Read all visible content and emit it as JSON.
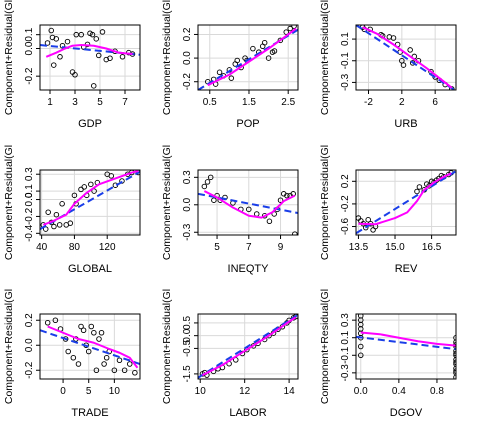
{
  "chart_data": [
    {
      "type": "scatter",
      "xlabel": "GDP",
      "ylabel": "Component+Residual(Gl",
      "xlim": [
        0.2,
        8.2
      ],
      "ylim": [
        -0.3,
        0.17
      ],
      "xticks": [
        1,
        3,
        5,
        7
      ],
      "yticks": [
        -0.2,
        0.0,
        0.1
      ],
      "points": [
        [
          0.8,
          0.04
        ],
        [
          1.1,
          0.13
        ],
        [
          1.2,
          0.08
        ],
        [
          1.3,
          -0.12
        ],
        [
          1.5,
          0.07
        ],
        [
          1.8,
          -0.06
        ],
        [
          2.0,
          0.02
        ],
        [
          2.4,
          0.05
        ],
        [
          2.8,
          -0.17
        ],
        [
          3.0,
          -0.19
        ],
        [
          3.1,
          0.1
        ],
        [
          3.5,
          0.1
        ],
        [
          3.7,
          0.01
        ],
        [
          4.0,
          0.03
        ],
        [
          4.2,
          0.11
        ],
        [
          4.4,
          0.1
        ],
        [
          4.5,
          -0.27
        ],
        [
          4.7,
          0.07
        ],
        [
          4.9,
          -0.05
        ],
        [
          5.2,
          0.12
        ],
        [
          5.5,
          -0.08
        ],
        [
          5.8,
          -0.07
        ],
        [
          6.2,
          -0.02
        ],
        [
          6.8,
          -0.06
        ],
        [
          7.3,
          -0.03
        ],
        [
          7.6,
          -0.04
        ]
      ],
      "linear_fit": [
        [
          0.2,
          0.025
        ],
        [
          8.2,
          -0.045
        ]
      ],
      "smooth_fit": [
        [
          0.7,
          -0.06
        ],
        [
          1.5,
          -0.03
        ],
        [
          2.2,
          0.0
        ],
        [
          2.8,
          0.02
        ],
        [
          3.5,
          0.025
        ],
        [
          4.5,
          0.02
        ],
        [
          5.5,
          0.0
        ],
        [
          6.5,
          -0.03
        ],
        [
          7.6,
          -0.04
        ]
      ]
    },
    {
      "type": "scatter",
      "xlabel": "POP",
      "ylabel": "Component+Residual(Gl",
      "xlim": [
        0.2,
        2.75
      ],
      "ylim": [
        -0.27,
        0.28
      ],
      "xticks": [
        0.5,
        1.5,
        2.5
      ],
      "yticks": [
        -0.2,
        0.0,
        0.2
      ],
      "points": [
        [
          0.45,
          -0.2
        ],
        [
          0.6,
          -0.18
        ],
        [
          0.65,
          -0.22
        ],
        [
          0.75,
          -0.12
        ],
        [
          0.85,
          -0.15
        ],
        [
          1.0,
          -0.1
        ],
        [
          1.05,
          -0.17
        ],
        [
          1.15,
          -0.05
        ],
        [
          1.2,
          -0.02
        ],
        [
          1.3,
          -0.08
        ],
        [
          1.4,
          0.0
        ],
        [
          1.45,
          -0.02
        ],
        [
          1.6,
          0.08
        ],
        [
          1.75,
          0.05
        ],
        [
          1.85,
          0.1
        ],
        [
          1.9,
          0.13
        ],
        [
          2.0,
          0.0
        ],
        [
          2.1,
          0.05
        ],
        [
          2.15,
          0.06
        ],
        [
          2.3,
          0.15
        ],
        [
          2.45,
          0.22
        ],
        [
          2.55,
          0.25
        ],
        [
          2.65,
          0.27
        ]
      ],
      "linear_fit": [
        [
          0.2,
          -0.27
        ],
        [
          2.75,
          0.24
        ]
      ],
      "smooth_fit": [
        [
          0.45,
          -0.23
        ],
        [
          1.0,
          -0.14
        ],
        [
          1.5,
          -0.03
        ],
        [
          2.0,
          0.08
        ],
        [
          2.5,
          0.2
        ],
        [
          2.7,
          0.25
        ]
      ]
    },
    {
      "type": "scatter",
      "xlabel": "URB",
      "ylabel": "Component+Residual(Gl",
      "xlim": [
        -3.5,
        8.5
      ],
      "ylim": [
        -0.37,
        0.23
      ],
      "xticks": [
        -2,
        2,
        6
      ],
      "yticks": [
        -0.3,
        -0.1,
        0.1
      ],
      "points": [
        [
          -2.7,
          0.21
        ],
        [
          -2.5,
          0.19
        ],
        [
          -1.8,
          0.19
        ],
        [
          -0.5,
          0.14
        ],
        [
          -0.3,
          0.13
        ],
        [
          0.5,
          0.12
        ],
        [
          1.0,
          0.11
        ],
        [
          1.5,
          0.05
        ],
        [
          1.8,
          -0.02
        ],
        [
          2.0,
          -0.1
        ],
        [
          2.2,
          -0.14
        ],
        [
          3.0,
          0.0
        ],
        [
          3.3,
          -0.12
        ],
        [
          3.5,
          -0.06
        ],
        [
          4.0,
          -0.1
        ],
        [
          5.5,
          -0.2
        ],
        [
          6.0,
          -0.25
        ],
        [
          6.5,
          -0.28
        ],
        [
          7.2,
          -0.32
        ],
        [
          8.0,
          -0.36
        ]
      ],
      "linear_fit": [
        [
          -3.5,
          0.23
        ],
        [
          8.5,
          -0.38
        ]
      ],
      "smooth_fit": [
        [
          -2.7,
          0.21
        ],
        [
          -1.0,
          0.15
        ],
        [
          1.0,
          0.05
        ],
        [
          3.0,
          -0.06
        ],
        [
          5.0,
          -0.17
        ],
        [
          7.0,
          -0.29
        ],
        [
          8.0,
          -0.35
        ]
      ]
    },
    {
      "type": "scatter",
      "xlabel": "GLOBAL",
      "ylabel": "Component+Residual(Gl",
      "xlim": [
        38,
        160
      ],
      "ylim": [
        -0.42,
        0.35
      ],
      "xticks": [
        40,
        80,
        120
      ],
      "yticks": [
        -0.4,
        -0.2,
        0.0,
        0.1,
        0.3
      ],
      "points": [
        [
          42,
          -0.3
        ],
        [
          45,
          -0.35
        ],
        [
          48,
          -0.15
        ],
        [
          52,
          -0.27
        ],
        [
          55,
          -0.32
        ],
        [
          58,
          -0.18
        ],
        [
          62,
          -0.3
        ],
        [
          65,
          -0.05
        ],
        [
          70,
          -0.3
        ],
        [
          75,
          -0.28
        ],
        [
          80,
          0.05
        ],
        [
          82,
          -0.05
        ],
        [
          88,
          0.12
        ],
        [
          92,
          0.15
        ],
        [
          95,
          0.05
        ],
        [
          100,
          0.18
        ],
        [
          104,
          0.1
        ],
        [
          108,
          0.2
        ],
        [
          120,
          0.3
        ],
        [
          125,
          0.28
        ],
        [
          130,
          0.17
        ],
        [
          138,
          0.22
        ],
        [
          145,
          0.3
        ],
        [
          150,
          0.32
        ],
        [
          158,
          0.32
        ]
      ],
      "linear_fit": [
        [
          38,
          -0.35
        ],
        [
          160,
          0.33
        ]
      ],
      "smooth_fit": [
        [
          42,
          -0.3
        ],
        [
          55,
          -0.25
        ],
        [
          70,
          -0.18
        ],
        [
          80,
          -0.05
        ],
        [
          95,
          0.08
        ],
        [
          110,
          0.18
        ],
        [
          130,
          0.25
        ],
        [
          150,
          0.32
        ],
        [
          158,
          0.34
        ]
      ]
    },
    {
      "type": "scatter",
      "xlabel": "INEQTY",
      "ylabel": "Component+Residual(Gl",
      "xlim": [
        3.8,
        10.1
      ],
      "ylim": [
        -0.33,
        0.38
      ],
      "xticks": [
        5,
        7,
        9
      ],
      "yticks": [
        -0.3,
        0.0,
        0.3
      ],
      "points": [
        [
          4.2,
          0.2
        ],
        [
          4.4,
          0.25
        ],
        [
          4.6,
          0.3
        ],
        [
          4.8,
          0.05
        ],
        [
          5.0,
          0.1
        ],
        [
          5.2,
          0.05
        ],
        [
          5.5,
          0.08
        ],
        [
          6.0,
          0.02
        ],
        [
          6.5,
          -0.05
        ],
        [
          7.0,
          -0.05
        ],
        [
          7.5,
          -0.1
        ],
        [
          8.0,
          -0.12
        ],
        [
          8.3,
          -0.18
        ],
        [
          8.6,
          -0.1
        ],
        [
          8.8,
          -0.05
        ],
        [
          9.0,
          0.05
        ],
        [
          9.2,
          0.12
        ],
        [
          9.4,
          0.1
        ],
        [
          9.6,
          0.1
        ],
        [
          9.8,
          0.12
        ],
        [
          9.9,
          -0.32
        ]
      ],
      "linear_fit": [
        [
          3.8,
          0.12
        ],
        [
          10.1,
          -0.09
        ]
      ],
      "smooth_fit": [
        [
          4.2,
          0.15
        ],
        [
          5.0,
          0.08
        ],
        [
          6.0,
          -0.03
        ],
        [
          7.0,
          -0.12
        ],
        [
          7.8,
          -0.14
        ],
        [
          8.5,
          -0.08
        ],
        [
          9.2,
          0.04
        ],
        [
          9.9,
          0.1
        ]
      ]
    },
    {
      "type": "scatter",
      "xlabel": "REV",
      "ylabel": "Component+Residual(Gl",
      "xlim": [
        13.4,
        17.5
      ],
      "ylim": [
        -0.75,
        0.4
      ],
      "xticks": [
        13.5,
        15.0,
        16.5
      ],
      "yticks": [
        -0.6,
        -0.2,
        0.2
      ],
      "points": [
        [
          13.5,
          -0.45
        ],
        [
          13.6,
          -0.5
        ],
        [
          13.7,
          -0.55
        ],
        [
          13.8,
          -0.62
        ],
        [
          13.9,
          -0.48
        ],
        [
          14.0,
          -0.55
        ],
        [
          14.1,
          -0.66
        ],
        [
          14.2,
          -0.6
        ],
        [
          15.9,
          0.02
        ],
        [
          16.0,
          0.1
        ],
        [
          16.2,
          0.05
        ],
        [
          16.3,
          0.15
        ],
        [
          16.4,
          0.12
        ],
        [
          16.5,
          0.2
        ],
        [
          16.6,
          0.18
        ],
        [
          16.7,
          0.22
        ],
        [
          16.8,
          0.25
        ],
        [
          16.9,
          0.3
        ],
        [
          17.0,
          0.28
        ],
        [
          17.2,
          0.32
        ],
        [
          17.3,
          0.35
        ]
      ],
      "linear_fit": [
        [
          13.4,
          -0.72
        ],
        [
          17.5,
          0.38
        ]
      ],
      "smooth_fit": [
        [
          13.5,
          -0.55
        ],
        [
          14.2,
          -0.56
        ],
        [
          15.0,
          -0.45
        ],
        [
          15.5,
          -0.35
        ],
        [
          15.9,
          -0.15
        ],
        [
          16.2,
          0.05
        ],
        [
          16.6,
          0.18
        ],
        [
          17.0,
          0.28
        ],
        [
          17.3,
          0.34
        ]
      ]
    },
    {
      "type": "scatter",
      "xlabel": "TRADE",
      "ylabel": "Component+Residual(Gl",
      "xlim": [
        -4.5,
        15
      ],
      "ylim": [
        -0.27,
        0.25
      ],
      "xticks": [
        0,
        5,
        10
      ],
      "yticks": [
        -0.2,
        0.0,
        0.2
      ],
      "points": [
        [
          -3,
          0.18
        ],
        [
          -1.5,
          0.2
        ],
        [
          -0.5,
          0.13
        ],
        [
          0.5,
          0.05
        ],
        [
          1.0,
          -0.05
        ],
        [
          2.0,
          -0.1
        ],
        [
          2.5,
          0.05
        ],
        [
          3.0,
          -0.15
        ],
        [
          3.5,
          0.15
        ],
        [
          4.0,
          0.12
        ],
        [
          4.5,
          0.0
        ],
        [
          5.0,
          -0.05
        ],
        [
          5.5,
          0.15
        ],
        [
          6.0,
          0.1
        ],
        [
          6.5,
          -0.2
        ],
        [
          7.0,
          0.05
        ],
        [
          7.5,
          0.1
        ],
        [
          8.0,
          -0.15
        ],
        [
          8.5,
          -0.1
        ],
        [
          9.0,
          -0.05
        ],
        [
          10.0,
          -0.2
        ],
        [
          11.0,
          -0.12
        ],
        [
          12.0,
          -0.2
        ],
        [
          13.0,
          -0.15
        ],
        [
          14.0,
          -0.22
        ]
      ],
      "linear_fit": [
        [
          -4.5,
          0.12
        ],
        [
          15,
          -0.15
        ]
      ],
      "smooth_fit": [
        [
          -3,
          0.15
        ],
        [
          0,
          0.1
        ],
        [
          3,
          0.05
        ],
        [
          6,
          0.02
        ],
        [
          9,
          -0.03
        ],
        [
          11,
          -0.06
        ],
        [
          13,
          -0.1
        ],
        [
          14.5,
          -0.18
        ]
      ]
    },
    {
      "type": "scatter",
      "xlabel": "LABOR",
      "ylabel": "Component+Residual(Gl",
      "xlim": [
        9.9,
        14.4
      ],
      "ylim": [
        -1.7,
        0.85
      ],
      "xticks": [
        10,
        12,
        14
      ],
      "yticks": [
        -1.5,
        -0.5,
        0.0,
        0.5
      ],
      "points": [
        [
          10.1,
          -1.5
        ],
        [
          10.2,
          -1.45
        ],
        [
          10.3,
          -1.55
        ],
        [
          10.6,
          -1.4
        ],
        [
          10.8,
          -1.3
        ],
        [
          11.0,
          -1.25
        ],
        [
          11.3,
          -1.1
        ],
        [
          11.6,
          -0.95
        ],
        [
          11.9,
          -0.7
        ],
        [
          12.1,
          -0.55
        ],
        [
          12.4,
          -0.4
        ],
        [
          12.6,
          -0.3
        ],
        [
          12.9,
          -0.15
        ],
        [
          13.1,
          0.0
        ],
        [
          13.3,
          0.1
        ],
        [
          13.5,
          0.25
        ],
        [
          13.7,
          0.35
        ],
        [
          13.9,
          0.5
        ],
        [
          14.0,
          0.6
        ],
        [
          14.2,
          0.7
        ],
        [
          14.3,
          0.75
        ]
      ],
      "linear_fit": [
        [
          9.9,
          -1.65
        ],
        [
          14.4,
          0.82
        ]
      ],
      "smooth_fit": [
        [
          10.1,
          -1.55
        ],
        [
          11.0,
          -1.15
        ],
        [
          12.0,
          -0.6
        ],
        [
          13.0,
          -0.05
        ],
        [
          14.0,
          0.55
        ],
        [
          14.3,
          0.72
        ]
      ]
    },
    {
      "type": "scatter",
      "xlabel": "DGOV",
      "ylabel": "Component+Residual(Gl",
      "xlim": [
        -0.05,
        1.0
      ],
      "ylim": [
        -0.37,
        0.37
      ],
      "xticks": [
        0.0,
        0.4,
        0.8
      ],
      "yticks": [
        -0.3,
        -0.1,
        0.1,
        0.3
      ],
      "points": [
        [
          0.0,
          0.35
        ],
        [
          0.0,
          0.3
        ],
        [
          0.0,
          0.2
        ],
        [
          0.0,
          0.1
        ],
        [
          0.0,
          0.0
        ],
        [
          0.0,
          -0.1
        ],
        [
          0.0,
          0.15
        ],
        [
          0.0,
          0.25
        ],
        [
          1.0,
          0.1
        ],
        [
          1.0,
          0.05
        ],
        [
          1.0,
          0.0
        ],
        [
          1.0,
          -0.05
        ],
        [
          1.0,
          -0.1
        ],
        [
          1.0,
          -0.15
        ],
        [
          1.0,
          -0.2
        ],
        [
          1.0,
          -0.25
        ],
        [
          1.0,
          -0.3
        ],
        [
          1.0,
          -0.35
        ],
        [
          1.0,
          0.02
        ],
        [
          1.0,
          -0.08
        ],
        [
          1.0,
          -0.18
        ],
        [
          1.0,
          -0.28
        ]
      ],
      "linear_fit": [
        [
          -0.05,
          0.11
        ],
        [
          1.0,
          -0.03
        ]
      ],
      "smooth_fit": [
        [
          0.0,
          0.16
        ],
        [
          0.2,
          0.14
        ],
        [
          0.4,
          0.1
        ],
        [
          0.6,
          0.06
        ],
        [
          0.8,
          0.03
        ],
        [
          1.0,
          0.01
        ]
      ]
    }
  ],
  "colors": {
    "linear_fit": "#1a3ee8",
    "smooth_fit": "#ff00ff",
    "grid": "#d9d9d9",
    "points": "#000000"
  }
}
